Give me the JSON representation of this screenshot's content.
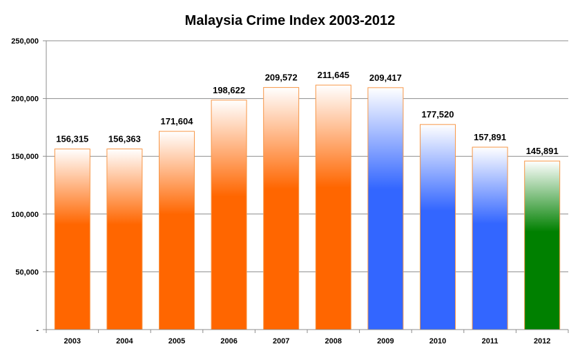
{
  "chart_data": {
    "type": "bar",
    "title": "Malaysia Crime Index 2003-2012",
    "xlabel": "",
    "ylabel": "",
    "categories": [
      "2003",
      "2004",
      "2005",
      "2006",
      "2007",
      "2008",
      "2009",
      "2010",
      "2011",
      "2012"
    ],
    "values": [
      156315,
      156363,
      171604,
      198622,
      209572,
      211645,
      209417,
      177520,
      157891,
      145891
    ],
    "value_labels": [
      "156,315",
      "156,363",
      "171,604",
      "198,622",
      "209,572",
      "211,645",
      "209,417",
      "177,520",
      "157,891",
      "145,891"
    ],
    "bar_colors": [
      "#ff6600",
      "#ff6600",
      "#ff6600",
      "#ff6600",
      "#ff6600",
      "#ff6600",
      "#3366ff",
      "#3366ff",
      "#3366ff",
      "#008000"
    ],
    "bar_outline_color": "#f79646",
    "ylim": [
      0,
      250000
    ],
    "yticks": [
      0,
      50000,
      100000,
      150000,
      200000,
      250000
    ],
    "ytick_labels": [
      "-",
      "50,000",
      "100,000",
      "150,000",
      "200,000",
      "250,000"
    ],
    "grid": true,
    "legend": "none"
  }
}
